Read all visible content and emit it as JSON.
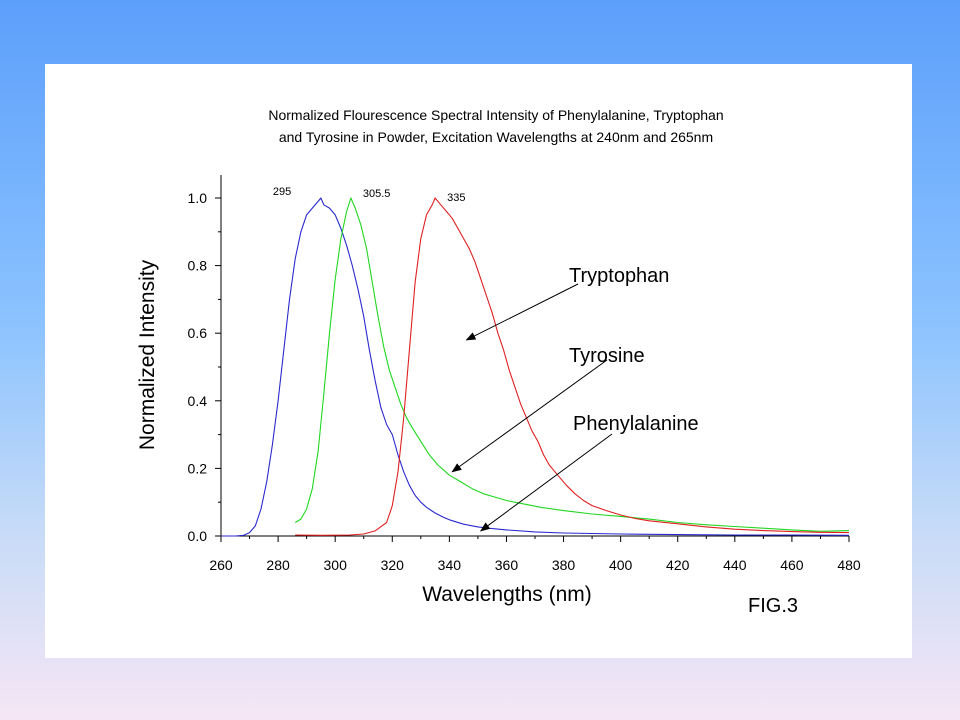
{
  "chart_data": {
    "type": "line",
    "title_lines": [
      "Normalized Flourescence Spectral Intensity of Phenylalanine, Tryptophan",
      "and Tyrosine in Powder, Excitation Wavelengths at 240nm and 265nm"
    ],
    "xlabel": "Wavelengths (nm)",
    "ylabel": "Normalized Intensity",
    "xlim": [
      260,
      480
    ],
    "ylim": [
      0,
      1.08
    ],
    "x_ticks": [
      "260",
      "280",
      "300",
      "320",
      "340",
      "360",
      "380",
      "400",
      "420",
      "440",
      "460",
      "480"
    ],
    "y_ticks": [
      "0.0",
      "0.2",
      "0.4",
      "0.6",
      "0.8",
      "1.0"
    ],
    "grid": false,
    "series": [
      {
        "color": "#2a2ad0",
        "points": [
          [
            260,
            0.0
          ],
          [
            265,
            0.0
          ],
          [
            268,
            0.002
          ],
          [
            270,
            0.01
          ],
          [
            272,
            0.03
          ],
          [
            274,
            0.08
          ],
          [
            276,
            0.16
          ],
          [
            278,
            0.27
          ],
          [
            280,
            0.4
          ],
          [
            282,
            0.55
          ],
          [
            284,
            0.7
          ],
          [
            286,
            0.82
          ],
          [
            288,
            0.9
          ],
          [
            290,
            0.95
          ],
          [
            292,
            0.97
          ],
          [
            294,
            0.99
          ],
          [
            295,
            1.0
          ],
          [
            296,
            0.98
          ],
          [
            298,
            0.97
          ],
          [
            300,
            0.95
          ],
          [
            302,
            0.91
          ],
          [
            304,
            0.86
          ],
          [
            306,
            0.8
          ],
          [
            308,
            0.73
          ],
          [
            310,
            0.65
          ],
          [
            312,
            0.55
          ],
          [
            314,
            0.46
          ],
          [
            316,
            0.38
          ],
          [
            318,
            0.33
          ],
          [
            320,
            0.3
          ],
          [
            322,
            0.24
          ],
          [
            324,
            0.19
          ],
          [
            326,
            0.15
          ],
          [
            328,
            0.12
          ],
          [
            330,
            0.1
          ],
          [
            332,
            0.085
          ],
          [
            335,
            0.068
          ],
          [
            338,
            0.055
          ],
          [
            340,
            0.048
          ],
          [
            345,
            0.035
          ],
          [
            350,
            0.027
          ],
          [
            355,
            0.022
          ],
          [
            360,
            0.018
          ],
          [
            370,
            0.012
          ],
          [
            380,
            0.009
          ],
          [
            400,
            0.006
          ],
          [
            420,
            0.004
          ],
          [
            440,
            0.003
          ],
          [
            460,
            0.003
          ],
          [
            480,
            0.002
          ]
        ]
      },
      {
        "color": "#1fd81f",
        "points": [
          [
            286,
            0.04
          ],
          [
            288,
            0.05
          ],
          [
            290,
            0.08
          ],
          [
            292,
            0.14
          ],
          [
            294,
            0.25
          ],
          [
            296,
            0.42
          ],
          [
            298,
            0.6
          ],
          [
            300,
            0.76
          ],
          [
            302,
            0.88
          ],
          [
            304,
            0.96
          ],
          [
            305.5,
            1.0
          ],
          [
            307,
            0.97
          ],
          [
            309,
            0.92
          ],
          [
            311,
            0.85
          ],
          [
            313,
            0.75
          ],
          [
            315,
            0.65
          ],
          [
            317,
            0.56
          ],
          [
            319,
            0.49
          ],
          [
            321,
            0.44
          ],
          [
            323,
            0.39
          ],
          [
            325,
            0.35
          ],
          [
            327,
            0.32
          ],
          [
            330,
            0.28
          ],
          [
            333,
            0.24
          ],
          [
            336,
            0.21
          ],
          [
            340,
            0.18
          ],
          [
            344,
            0.16
          ],
          [
            348,
            0.14
          ],
          [
            352,
            0.125
          ],
          [
            356,
            0.115
          ],
          [
            360,
            0.105
          ],
          [
            366,
            0.095
          ],
          [
            372,
            0.085
          ],
          [
            380,
            0.075
          ],
          [
            390,
            0.065
          ],
          [
            400,
            0.058
          ],
          [
            410,
            0.05
          ],
          [
            420,
            0.04
          ],
          [
            430,
            0.033
          ],
          [
            440,
            0.028
          ],
          [
            450,
            0.023
          ],
          [
            460,
            0.018
          ],
          [
            470,
            0.014
          ],
          [
            480,
            0.016
          ]
        ]
      },
      {
        "color": "#e02020",
        "points": [
          [
            286,
            0.003
          ],
          [
            295,
            0.002
          ],
          [
            305,
            0.003
          ],
          [
            310,
            0.006
          ],
          [
            314,
            0.015
          ],
          [
            318,
            0.04
          ],
          [
            320,
            0.09
          ],
          [
            322,
            0.19
          ],
          [
            324,
            0.35
          ],
          [
            326,
            0.55
          ],
          [
            328,
            0.75
          ],
          [
            330,
            0.88
          ],
          [
            332,
            0.95
          ],
          [
            334,
            0.98
          ],
          [
            335,
            1.0
          ],
          [
            337,
            0.98
          ],
          [
            339,
            0.96
          ],
          [
            341,
            0.94
          ],
          [
            343,
            0.91
          ],
          [
            345,
            0.88
          ],
          [
            347,
            0.85
          ],
          [
            349,
            0.81
          ],
          [
            351,
            0.76
          ],
          [
            353,
            0.71
          ],
          [
            355,
            0.66
          ],
          [
            357,
            0.6
          ],
          [
            359,
            0.55
          ],
          [
            361,
            0.49
          ],
          [
            363,
            0.44
          ],
          [
            365,
            0.39
          ],
          [
            367,
            0.35
          ],
          [
            369,
            0.31
          ],
          [
            371,
            0.28
          ],
          [
            373,
            0.24
          ],
          [
            375,
            0.21
          ],
          [
            378,
            0.18
          ],
          [
            381,
            0.15
          ],
          [
            384,
            0.125
          ],
          [
            387,
            0.105
          ],
          [
            390,
            0.09
          ],
          [
            395,
            0.075
          ],
          [
            400,
            0.062
          ],
          [
            405,
            0.052
          ],
          [
            410,
            0.045
          ],
          [
            420,
            0.036
          ],
          [
            430,
            0.027
          ],
          [
            440,
            0.02
          ],
          [
            450,
            0.016
          ],
          [
            460,
            0.013
          ],
          [
            470,
            0.011
          ],
          [
            480,
            0.01
          ]
        ]
      }
    ],
    "peak_labels": [
      {
        "text": "295",
        "x": 295,
        "y": 1.0
      },
      {
        "text": "305.5",
        "x": 305.5,
        "y": 1.0
      },
      {
        "text": "335",
        "x": 335,
        "y": 1.0
      }
    ],
    "annotations": [
      {
        "text": "Tryptophan",
        "arrow_to": [
          346,
          0.58
        ]
      },
      {
        "text": "Tyrosine",
        "arrow_to": [
          341,
          0.19
        ]
      },
      {
        "text": "Phenylalanine",
        "arrow_to": [
          351,
          0.015
        ]
      }
    ],
    "figure_label": "FIG.3"
  }
}
